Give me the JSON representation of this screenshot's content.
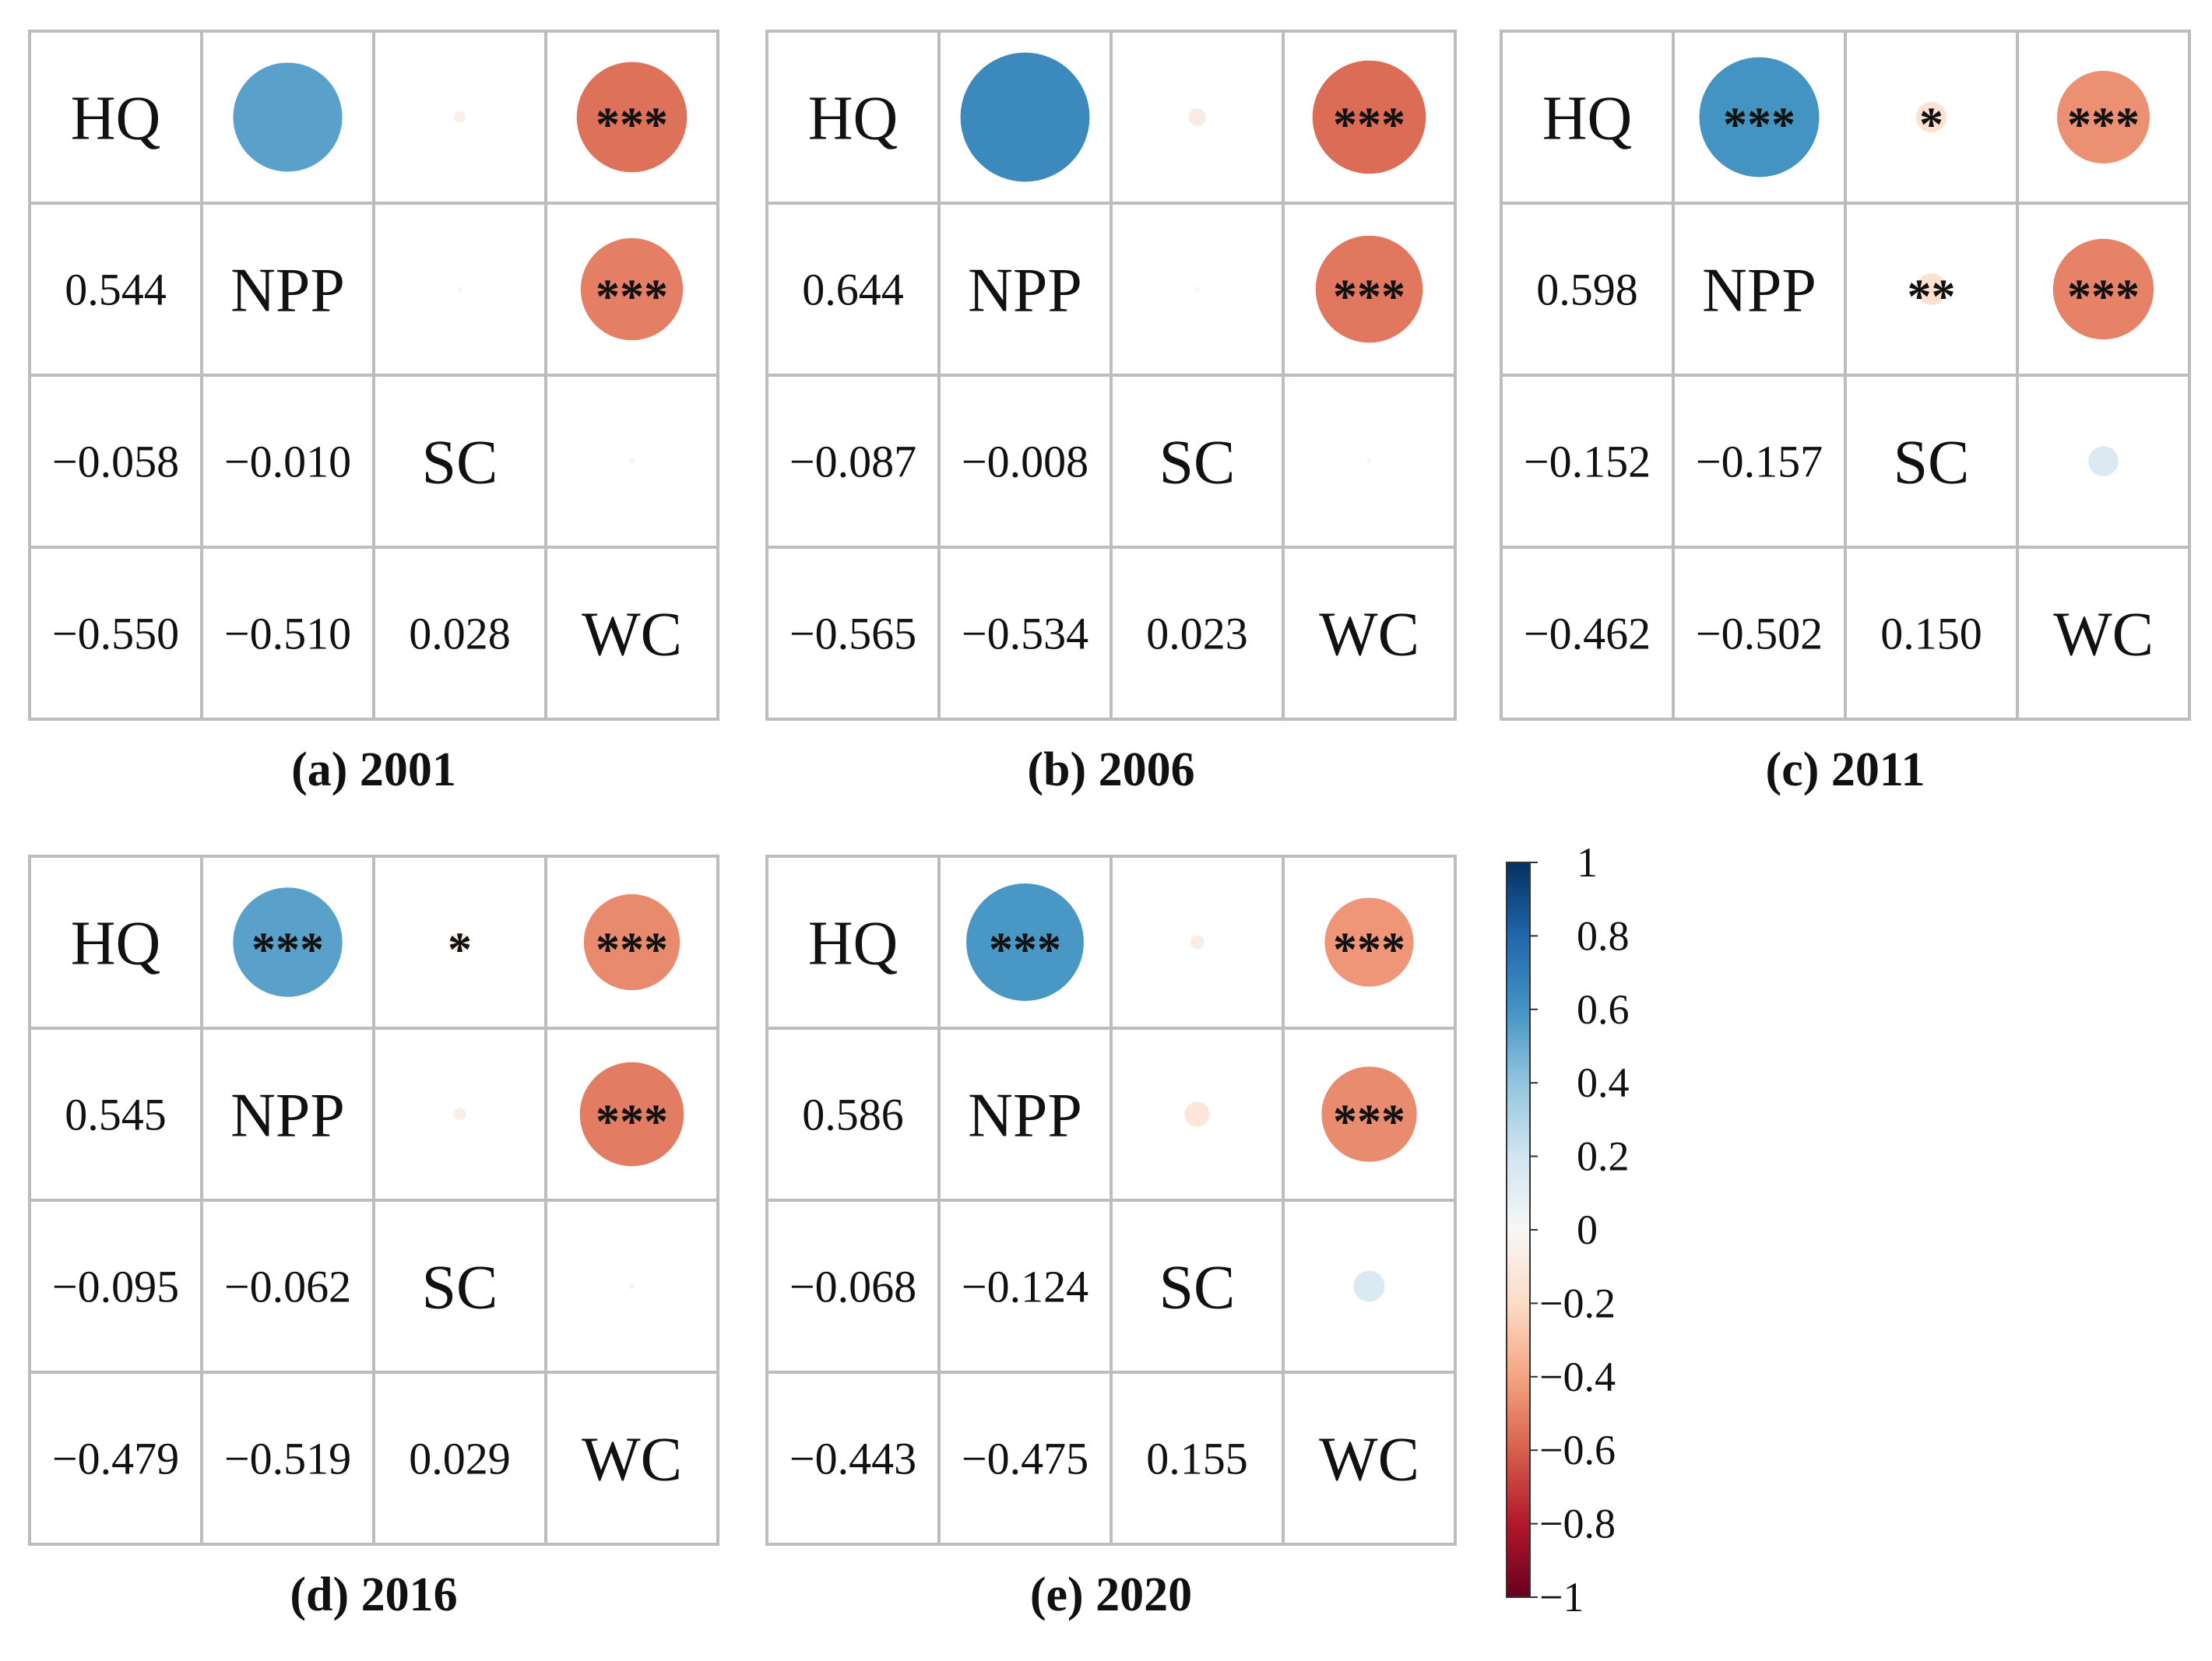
{
  "chart_data": {
    "type": "correlation-matrix",
    "variables": [
      "HQ",
      "NPP",
      "SC",
      "WC"
    ],
    "panels": [
      {
        "caption": "(a) 2001",
        "lower": [
          [
            "0.544"
          ],
          [
            "−0.058",
            "−0.010"
          ],
          [
            "−0.550",
            "−0.510",
            "0.028"
          ]
        ],
        "upper": [
          {
            "row": 0,
            "col": 1,
            "r": 0.544,
            "sig": ""
          },
          {
            "row": 0,
            "col": 2,
            "r": -0.058,
            "sig": ""
          },
          {
            "row": 0,
            "col": 3,
            "r": -0.55,
            "sig": "***"
          },
          {
            "row": 1,
            "col": 2,
            "r": -0.01,
            "sig": ""
          },
          {
            "row": 1,
            "col": 3,
            "r": -0.51,
            "sig": "***"
          },
          {
            "row": 2,
            "col": 3,
            "r": 0.028,
            "sig": ""
          }
        ]
      },
      {
        "caption": "(b) 2006",
        "lower": [
          [
            "0.644"
          ],
          [
            "−0.087",
            "−0.008"
          ],
          [
            "−0.565",
            "−0.534",
            "0.023"
          ]
        ],
        "upper": [
          {
            "row": 0,
            "col": 1,
            "r": 0.644,
            "sig": ""
          },
          {
            "row": 0,
            "col": 2,
            "r": -0.087,
            "sig": ""
          },
          {
            "row": 0,
            "col": 3,
            "r": -0.565,
            "sig": "***"
          },
          {
            "row": 1,
            "col": 2,
            "r": -0.008,
            "sig": ""
          },
          {
            "row": 1,
            "col": 3,
            "r": -0.534,
            "sig": "***"
          },
          {
            "row": 2,
            "col": 3,
            "r": 0.023,
            "sig": ""
          }
        ]
      },
      {
        "caption": "(c) 2011",
        "lower": [
          [
            "0.598"
          ],
          [
            "−0.152",
            "−0.157"
          ],
          [
            "−0.462",
            "−0.502",
            "0.150"
          ]
        ],
        "upper": [
          {
            "row": 0,
            "col": 1,
            "r": 0.598,
            "sig": "***"
          },
          {
            "row": 0,
            "col": 2,
            "r": -0.152,
            "sig": "*"
          },
          {
            "row": 0,
            "col": 3,
            "r": -0.462,
            "sig": "***"
          },
          {
            "row": 1,
            "col": 2,
            "r": -0.157,
            "sig": "**"
          },
          {
            "row": 1,
            "col": 3,
            "r": -0.502,
            "sig": "***"
          },
          {
            "row": 2,
            "col": 3,
            "r": 0.15,
            "sig": ""
          }
        ]
      },
      {
        "caption": "(d) 2016",
        "lower": [
          [
            "0.545"
          ],
          [
            "−0.095",
            "−0.062"
          ],
          [
            "−0.479",
            "−0.519",
            "0.029"
          ]
        ],
        "upper": [
          {
            "row": 0,
            "col": 1,
            "r": 0.545,
            "sig": "***"
          },
          {
            "row": 0,
            "col": 2,
            "r": -0.095,
            "sig": "*"
          },
          {
            "row": 0,
            "col": 3,
            "r": -0.479,
            "sig": "***"
          },
          {
            "row": 1,
            "col": 2,
            "r": -0.062,
            "sig": ""
          },
          {
            "row": 1,
            "col": 3,
            "r": -0.519,
            "sig": "***"
          },
          {
            "row": 2,
            "col": 3,
            "r": 0.029,
            "sig": ""
          }
        ]
      },
      {
        "caption": "(e) 2020",
        "lower": [
          [
            "0.586"
          ],
          [
            "−0.068",
            "−0.124"
          ],
          [
            "−0.443",
            "−0.475",
            "0.155"
          ]
        ],
        "upper": [
          {
            "row": 0,
            "col": 1,
            "r": 0.586,
            "sig": "***"
          },
          {
            "row": 0,
            "col": 2,
            "r": -0.068,
            "sig": ""
          },
          {
            "row": 0,
            "col": 3,
            "r": -0.443,
            "sig": "***"
          },
          {
            "row": 1,
            "col": 2,
            "r": -0.124,
            "sig": ""
          },
          {
            "row": 1,
            "col": 3,
            "r": -0.475,
            "sig": "***"
          },
          {
            "row": 2,
            "col": 3,
            "r": 0.155,
            "sig": ""
          }
        ]
      }
    ],
    "colorbar": {
      "range": [
        -1,
        1
      ],
      "ticks": [
        "1",
        "0.8",
        "0.6",
        "0.4",
        "0.2",
        "0",
        "−0.2",
        "−0.4",
        "−0.6",
        "−0.8",
        "−1"
      ],
      "colors": {
        "positive_strong": "#053061",
        "positive_mid": "#2166ac",
        "positive_light": "#4393c3",
        "positive_pale": "#d1e5f0",
        "neutral": "#f7f7f7",
        "negative_pale": "#fddbc7",
        "negative_light": "#f4a582",
        "negative_mid": "#d6604d",
        "negative_strong": "#b2182b",
        "negative_deep": "#67001f"
      }
    }
  }
}
